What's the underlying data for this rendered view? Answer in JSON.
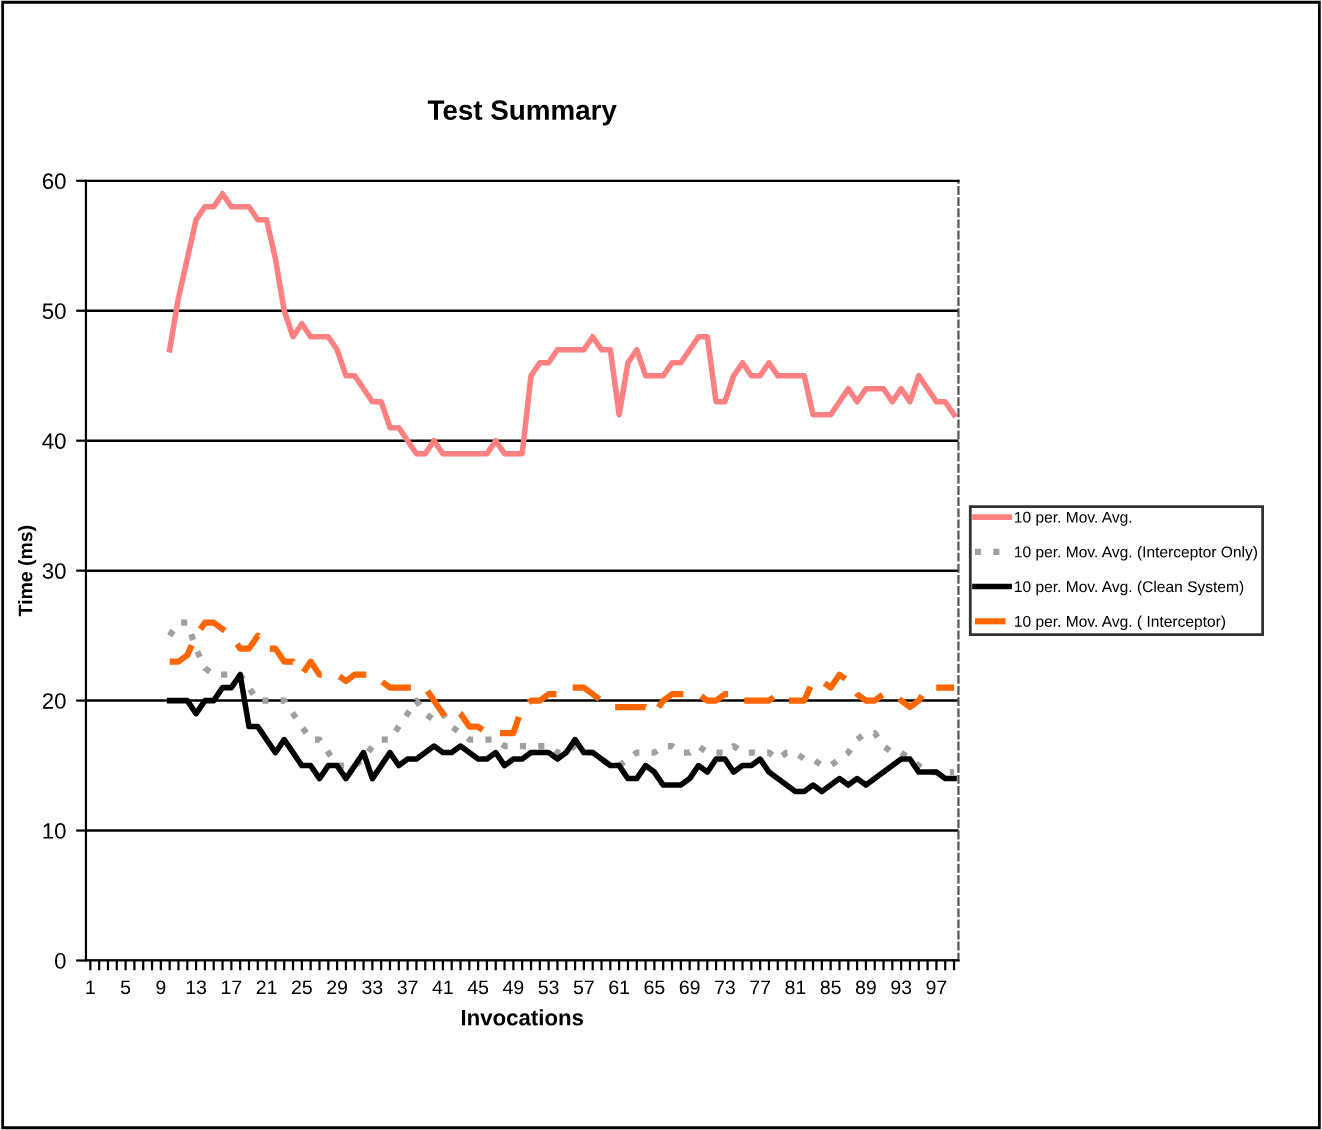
{
  "chart_data": {
    "type": "line",
    "title": "Test Summary",
    "xlabel": "Invocations",
    "ylabel": "Time (ms)",
    "categories": [
      "1",
      null,
      null,
      null,
      "5",
      null,
      null,
      null,
      "9",
      null,
      null,
      null,
      "13",
      null,
      null,
      null,
      "17",
      null,
      null,
      null,
      "21",
      null,
      null,
      null,
      "25",
      null,
      null,
      null,
      "29",
      null,
      null,
      null,
      "33",
      null,
      null,
      null,
      "37",
      null,
      null,
      null,
      "41",
      null,
      null,
      null,
      "45",
      null,
      null,
      null,
      "49",
      null,
      null,
      null,
      "53",
      null,
      null,
      null,
      "57",
      null,
      null,
      null,
      "61",
      null,
      null,
      null,
      "65",
      null,
      null,
      null,
      "69",
      null,
      null,
      null,
      "73",
      null,
      null,
      null,
      "77",
      null,
      null,
      null,
      "81",
      null,
      null,
      null,
      "85",
      null,
      null,
      null,
      "89",
      null,
      null,
      null,
      "93",
      null,
      null,
      null,
      "97",
      null,
      null
    ],
    "series": [
      {
        "name": "10 per. Mov. Avg.",
        "color": "#ff8080",
        "line_style": "solid",
        "values": [
          null,
          null,
          null,
          null,
          null,
          null,
          null,
          null,
          null,
          47,
          51,
          54,
          57,
          58,
          58,
          59,
          58,
          58,
          58,
          57,
          57,
          54,
          50,
          48,
          49,
          48,
          48,
          48,
          47,
          45,
          45,
          44,
          43,
          43,
          41,
          41,
          40,
          39,
          39,
          40,
          39,
          39,
          39,
          39,
          39,
          39,
          40,
          39,
          39,
          39,
          45,
          46,
          46,
          47,
          47,
          47,
          47,
          48,
          47,
          47,
          42,
          46,
          47,
          45,
          45,
          45,
          46,
          46,
          47,
          48,
          48,
          43,
          43,
          45,
          46,
          45,
          45,
          46,
          45,
          45,
          45,
          45,
          42,
          42,
          42,
          43,
          44,
          43,
          44,
          44,
          44,
          43,
          44,
          43,
          45,
          44,
          43,
          43,
          42
        ]
      },
      {
        "name": "10 per. Mov. Avg. (Interceptor Only)",
        "color": "#a0a0a0",
        "line_style": "dotted",
        "values": [
          null,
          null,
          null,
          null,
          null,
          null,
          null,
          null,
          null,
          25,
          26,
          26,
          24,
          22.5,
          22,
          22,
          22,
          22,
          21,
          20,
          20,
          20,
          20,
          19,
          18,
          17,
          17,
          16,
          15,
          15,
          15,
          15.5,
          16.5,
          17,
          17,
          18,
          19,
          20,
          19,
          18.5,
          19,
          18,
          17.5,
          17,
          17,
          17,
          17,
          16.5,
          16.5,
          16.5,
          16.5,
          16.5,
          16.5,
          16,
          16,
          16.5,
          16,
          16,
          15.5,
          15,
          15,
          15.5,
          16,
          16,
          16,
          16.5,
          16.5,
          16,
          16,
          16.5,
          16,
          16,
          16,
          16.5,
          16,
          16,
          16,
          16,
          15.5,
          16,
          16,
          15.5,
          15.5,
          15,
          15,
          15.5,
          16,
          17,
          17.5,
          17.5,
          16.5,
          16,
          16,
          15.5,
          15,
          14.5,
          14.5,
          14.5,
          14.5
        ]
      },
      {
        "name": "10 per. Mov. Avg. (Clean System)",
        "color": "#000000",
        "line_style": "solid",
        "values": [
          null,
          null,
          null,
          null,
          null,
          null,
          null,
          null,
          null,
          20,
          20,
          20,
          19,
          20,
          20,
          21,
          21,
          22,
          18,
          18,
          17,
          16,
          17,
          16,
          15,
          15,
          14,
          15,
          15,
          14,
          15,
          16,
          14,
          15,
          16,
          15,
          15.5,
          15.5,
          16,
          16.5,
          16,
          16,
          16.5,
          16,
          15.5,
          15.5,
          16,
          15,
          15.5,
          15.5,
          16,
          16,
          16,
          15.5,
          16,
          17,
          16,
          16,
          15.5,
          15,
          15,
          14,
          14,
          15,
          14.5,
          13.5,
          13.5,
          13.5,
          14,
          15,
          14.5,
          15.5,
          15.5,
          14.5,
          15,
          15,
          15.5,
          14.5,
          14,
          13.5,
          13,
          13,
          13.5,
          13,
          13.5,
          14,
          13.5,
          14,
          13.5,
          14,
          14.5,
          15,
          15.5,
          15.5,
          14.5,
          14.5,
          14.5,
          14,
          14
        ]
      },
      {
        "name": "10 per. Mov. Avg. ( Interceptor)",
        "color": "#ff6600",
        "line_style": "dashed",
        "values": [
          null,
          null,
          null,
          null,
          null,
          null,
          null,
          null,
          null,
          23,
          23,
          23.5,
          25,
          26,
          26,
          25.5,
          25,
          24,
          24,
          25,
          24,
          24,
          23,
          23,
          22,
          23,
          22,
          22,
          22,
          21.5,
          22,
          22,
          22,
          21.5,
          21,
          21,
          21,
          21,
          21,
          20,
          19,
          19.5,
          19,
          18,
          18,
          17.5,
          17.5,
          17.5,
          17.5,
          19.5,
          20,
          20,
          20.5,
          20.5,
          21,
          21,
          21,
          20.5,
          20,
          19.5,
          19.5,
          19.5,
          19.5,
          19.5,
          19,
          20,
          20.5,
          20.5,
          20.5,
          20.5,
          20,
          20,
          20.5,
          20.5,
          20,
          20,
          20,
          20,
          20.5,
          20,
          20,
          20,
          21.5,
          21.5,
          21,
          22,
          21.5,
          20.5,
          20,
          20,
          20.5,
          20.5,
          20,
          19.5,
          20,
          21,
          21,
          21,
          21
        ]
      }
    ],
    "ylim": [
      0,
      60
    ],
    "yticks": [
      0,
      10,
      20,
      30,
      40,
      50,
      60
    ],
    "grid": "y",
    "legend": "right"
  }
}
